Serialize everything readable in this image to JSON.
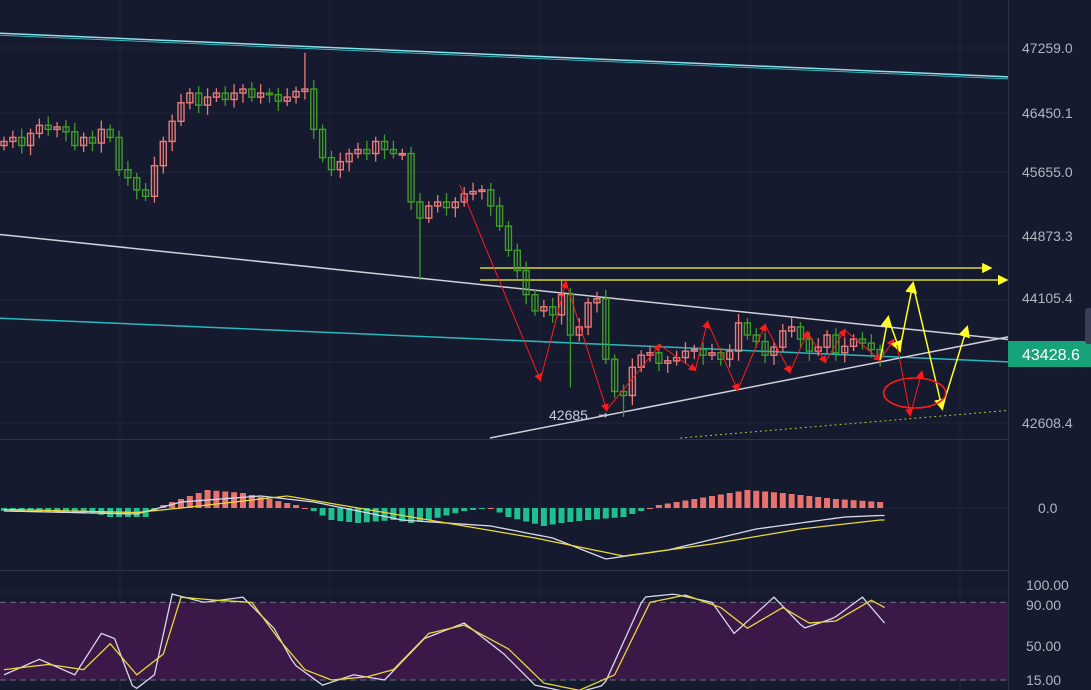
{
  "colors": {
    "background": "#161a2e",
    "up_candle": "#e87a7a",
    "down_candle": "#3f9c2a",
    "last_price_badge": "#16a37a",
    "macd_line": "#d8d8e8",
    "signal_line": "#e8d83a",
    "hist_positive": "#e8736e",
    "hist_negative": "#1fbf90",
    "stoch_k": "#d8d8e8",
    "stoch_d": "#e8d83a",
    "stoch_band": "#3a1848",
    "annotation_red": "#ff1a1a",
    "annotation_yellow": "#ffff2a"
  },
  "price_axis": {
    "ticks": [
      "47259.0",
      "46450.1",
      "45655.0",
      "44873.3",
      "44105.4",
      "42608.4"
    ],
    "last_price": "43428.6"
  },
  "macd_axis": {
    "ticks": [
      "0.0"
    ]
  },
  "stoch_axis": {
    "ticks": [
      "100.00",
      "90.00",
      "50.00",
      "15.00"
    ]
  },
  "chart_data": [
    {
      "type": "candlestick",
      "ylim": [
        42430,
        47600
      ],
      "close": [
        46100,
        46150,
        46050,
        46200,
        46300,
        46250,
        46280,
        46220,
        46050,
        46150,
        46080,
        46250,
        46150,
        45750,
        45650,
        45500,
        45420,
        45800,
        46100,
        46350,
        46580,
        46700,
        46550,
        46650,
        46700,
        46620,
        46700,
        46750,
        46650,
        46700,
        46680,
        46600,
        46650,
        46720,
        46750,
        46250,
        45900,
        45750,
        45850,
        45950,
        46000,
        45950,
        46100,
        46000,
        45950,
        45950,
        45350,
        45150,
        45300,
        45350,
        45280,
        45350,
        45450,
        45480,
        45500,
        45300,
        45050,
        44750,
        44500,
        44200,
        44000,
        44050,
        43950,
        44200,
        43700,
        43800,
        44100,
        44150,
        43400,
        43000,
        42950,
        43300,
        43450,
        43480,
        43350,
        43380,
        43420,
        43500,
        43520,
        43450,
        43480,
        43400,
        43500,
        43850,
        43700,
        43620,
        43450,
        43550,
        43750,
        43800,
        43650,
        43500,
        43550,
        43700,
        43480,
        43560,
        43650,
        43600,
        43520,
        43428.6
      ],
      "first_open": 46050,
      "high_overrides": {
        "34": 47200,
        "63": 44380
      },
      "low_overrides": {
        "47": 44380,
        "64": 43050,
        "70": 42685
      },
      "annotation_low": "42685",
      "trendlines": [
        {
          "kind": "channel-top",
          "color": "#8fe0e8",
          "points": [
            [
              -1,
              47445
            ],
            [
              114,
              46899
            ]
          ]
        },
        {
          "kind": "descending-white",
          "color": "#d0d0d8",
          "points": [
            [
              -1,
              44953
            ],
            [
              114,
              43638
            ]
          ]
        },
        {
          "kind": "cyan",
          "color": "#2ab8c0",
          "points": [
            [
              -1,
              43911
            ],
            [
              114,
              43365
            ]
          ]
        },
        {
          "kind": "ascending-white",
          "color": "#d0d0d8",
          "points": [
            [
              54.9,
              42423
            ],
            [
              114,
              43688
            ]
          ]
        },
        {
          "kind": "support-dotted",
          "color": "#9acd32",
          "points": [
            [
              76.4,
              42423
            ],
            [
              114,
              42770
            ]
          ]
        }
      ],
      "horizontal_levels": [
        {
          "price": 44531,
          "from": 53.8,
          "to": 111.4
        },
        {
          "price": 44382,
          "from": 53.8,
          "to": 113.2
        }
      ],
      "red_path": [
        [
          51.5,
          45560
        ],
        [
          60.6,
          43142
        ],
        [
          63.5,
          44357
        ],
        [
          68.1,
          42770
        ],
        [
          74.1,
          43576
        ],
        [
          78.1,
          43266
        ],
        [
          79.5,
          43861
        ],
        [
          82.9,
          43018
        ],
        [
          86,
          43824
        ],
        [
          88.8,
          43241
        ],
        [
          90.8,
          43737
        ],
        [
          92.8,
          43365
        ],
        [
          95,
          43762
        ],
        [
          99,
          43390
        ],
        [
          100.5,
          43638
        ]
      ],
      "yellow_projection": [
        [
          99,
          43390
        ],
        [
          99.9,
          43911
        ],
        [
          101.2,
          43514
        ],
        [
          102.7,
          44333
        ],
        [
          106,
          42795
        ],
        [
          108.8,
          43787
        ]
      ],
      "red_projection": [
        [
          100.9,
          43576
        ],
        [
          102.4,
          42708
        ],
        [
          103.7,
          43241
        ]
      ],
      "ellipse": {
        "center": [
          102.9,
          42981
        ]
      }
    },
    {
      "type": "macd",
      "histogram": [
        [
          0,
          -1
        ],
        [
          10,
          -1.5
        ],
        [
          12,
          -3
        ],
        [
          16,
          -3
        ],
        [
          17,
          -1
        ],
        [
          18,
          1
        ],
        [
          21,
          4
        ],
        [
          23,
          6
        ],
        [
          27,
          5
        ],
        [
          30,
          3
        ],
        [
          33,
          1
        ],
        [
          35,
          -1
        ],
        [
          37,
          -4
        ],
        [
          40,
          -5
        ],
        [
          44,
          -4
        ],
        [
          46,
          -5
        ],
        [
          48,
          -4
        ],
        [
          52,
          -1
        ],
        [
          55,
          0
        ],
        [
          57,
          -3
        ],
        [
          61,
          -6
        ],
        [
          63,
          -5
        ],
        [
          66,
          -4
        ],
        [
          70,
          -3
        ],
        [
          72,
          -1
        ],
        [
          74,
          1
        ],
        [
          78,
          3
        ],
        [
          82,
          5
        ],
        [
          84,
          6
        ],
        [
          88,
          5
        ],
        [
          94,
          3
        ],
        [
          99,
          2
        ]
      ],
      "macd": [
        [
          0,
          -1
        ],
        [
          15,
          -2
        ],
        [
          20,
          2
        ],
        [
          29,
          4
        ],
        [
          35,
          2
        ],
        [
          45,
          -4
        ],
        [
          55,
          -6
        ],
        [
          62,
          -10
        ],
        [
          68,
          -17
        ],
        [
          75,
          -14
        ],
        [
          85,
          -7
        ],
        [
          95,
          -3
        ],
        [
          99,
          -2.5
        ]
      ],
      "signal": [
        [
          0,
          -0.5
        ],
        [
          15,
          -1.5
        ],
        [
          20,
          0
        ],
        [
          32,
          4
        ],
        [
          40,
          0
        ],
        [
          50,
          -5
        ],
        [
          60,
          -10
        ],
        [
          70,
          -16
        ],
        [
          80,
          -12
        ],
        [
          90,
          -7
        ],
        [
          99,
          -4
        ]
      ]
    },
    {
      "type": "stochastic",
      "ylim": [
        0,
        100
      ],
      "band": [
        15,
        90
      ],
      "k": [
        [
          0,
          20
        ],
        [
          4,
          35
        ],
        [
          8,
          20
        ],
        [
          11,
          60
        ],
        [
          12.5,
          55
        ],
        [
          14.7,
          5
        ],
        [
          17,
          20
        ],
        [
          19,
          98
        ],
        [
          22.6,
          90
        ],
        [
          27,
          95
        ],
        [
          30.5,
          65
        ],
        [
          32.8,
          30
        ],
        [
          36,
          10
        ],
        [
          39.5,
          20
        ],
        [
          43,
          15
        ],
        [
          47.5,
          55
        ],
        [
          52,
          70
        ],
        [
          56.5,
          40
        ],
        [
          60,
          10
        ],
        [
          64.4,
          2
        ],
        [
          67.8,
          10
        ],
        [
          72.3,
          95
        ],
        [
          75.7,
          98
        ],
        [
          80,
          90
        ],
        [
          82.5,
          60
        ],
        [
          87,
          95
        ],
        [
          90.4,
          65
        ],
        [
          93.8,
          75
        ],
        [
          97,
          95
        ],
        [
          99.5,
          70
        ]
      ],
      "d": [
        [
          0,
          25
        ],
        [
          5,
          30
        ],
        [
          9,
          25
        ],
        [
          12,
          50
        ],
        [
          15,
          20
        ],
        [
          18,
          40
        ],
        [
          20,
          95
        ],
        [
          24,
          92
        ],
        [
          28,
          90
        ],
        [
          31,
          55
        ],
        [
          34,
          25
        ],
        [
          37,
          15
        ],
        [
          41,
          18
        ],
        [
          44,
          25
        ],
        [
          48,
          60
        ],
        [
          52,
          68
        ],
        [
          57,
          45
        ],
        [
          61,
          12
        ],
        [
          65,
          5
        ],
        [
          69,
          20
        ],
        [
          73,
          90
        ],
        [
          77,
          97
        ],
        [
          81,
          85
        ],
        [
          84,
          65
        ],
        [
          88,
          85
        ],
        [
          91,
          70
        ],
        [
          94,
          72
        ],
        [
          98,
          92
        ],
        [
          99.5,
          85
        ]
      ]
    }
  ]
}
